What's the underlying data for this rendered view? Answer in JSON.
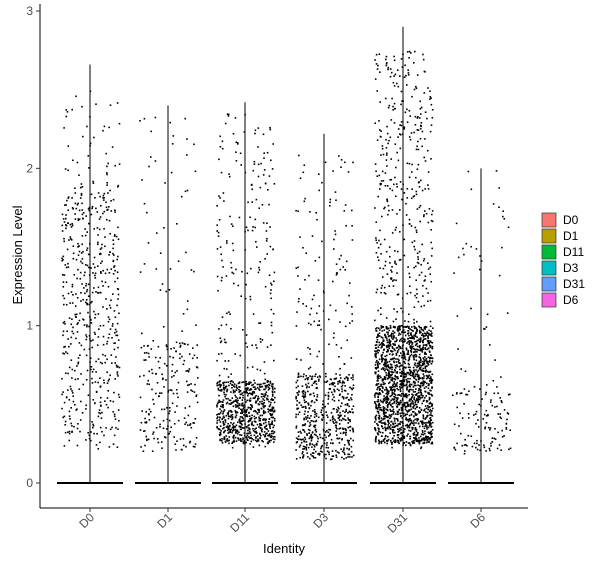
{
  "chart_data": {
    "type": "violin",
    "title": "",
    "xlabel": "Identity",
    "ylabel": "Expression Level",
    "categories": [
      "D0",
      "D1",
      "D11",
      "D3",
      "D31",
      "D6"
    ],
    "yticks": [
      0,
      1,
      2,
      3
    ],
    "ylim": [
      -0.15,
      3.05
    ],
    "legend": {
      "placement": "right",
      "entries": [
        {
          "label": "D0",
          "color": "#F8766D"
        },
        {
          "label": "D1",
          "color": "#B79F00"
        },
        {
          "label": "D11",
          "color": "#00BA38"
        },
        {
          "label": "D3",
          "color": "#00BFC4"
        },
        {
          "label": "D31",
          "color": "#619CFF"
        },
        {
          "label": "D6",
          "color": "#F564E3"
        }
      ]
    },
    "series": [
      {
        "category": "D0",
        "max": 2.66,
        "zero_line": true,
        "nonzero_points_approx": 560,
        "low": 0.2,
        "high": 2.5,
        "dense_low": 0.3,
        "dense_high": 1.9
      },
      {
        "category": "D1",
        "max": 2.4,
        "zero_line": true,
        "nonzero_points_approx": 240,
        "low": 0.2,
        "high": 2.35,
        "dense_low": 0.2,
        "dense_high": 0.9
      },
      {
        "category": "D11",
        "max": 2.42,
        "zero_line": true,
        "nonzero_points_approx": 900,
        "low": 0.22,
        "high": 2.35,
        "dense_low": 0.25,
        "dense_high": 0.65
      },
      {
        "category": "D3",
        "max": 2.22,
        "zero_line": true,
        "nonzero_points_approx": 620,
        "low": 0.13,
        "high": 2.1,
        "dense_low": 0.15,
        "dense_high": 0.7
      },
      {
        "category": "D31",
        "max": 2.9,
        "zero_line": true,
        "nonzero_points_approx": 2000,
        "low": 0.22,
        "high": 2.75,
        "dense_low": 0.25,
        "dense_high": 1.0
      },
      {
        "category": "D6",
        "max": 2.0,
        "zero_line": true,
        "nonzero_points_approx": 150,
        "low": 0.18,
        "high": 2.0,
        "dense_low": 0.2,
        "dense_high": 0.6
      }
    ]
  }
}
